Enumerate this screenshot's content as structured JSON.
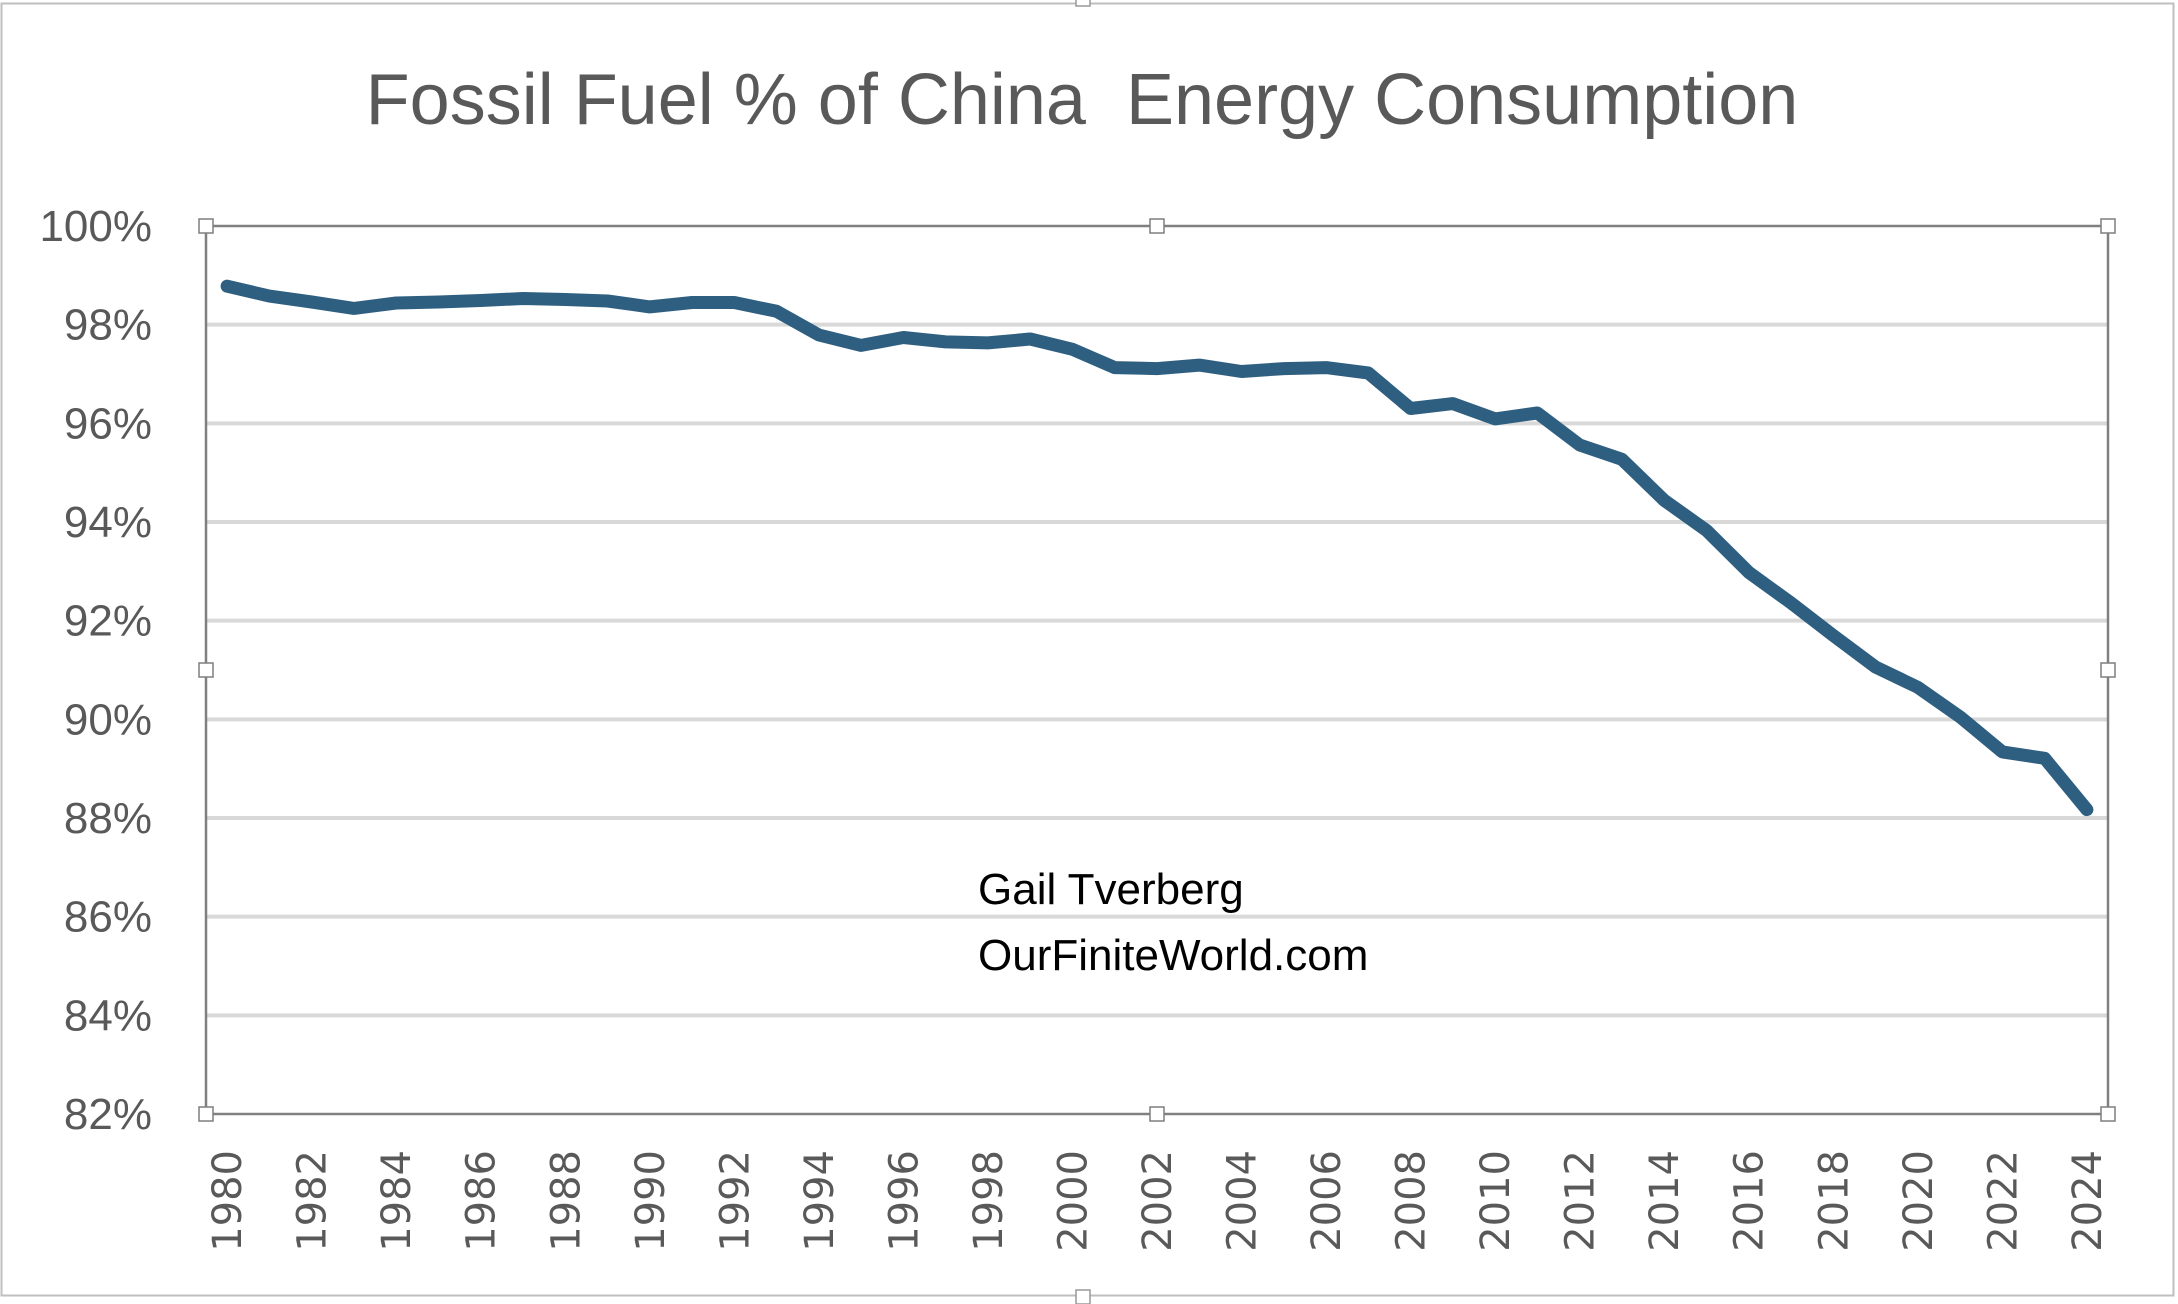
{
  "window": {
    "chart_area_selected": true,
    "plot_area_selected": true
  },
  "colors": {
    "line": "#2F5F80",
    "gridline": "#D9D9D9",
    "text": "#595959",
    "annotation_text": "#000000",
    "frame": "#808080",
    "chart_border": "#BFBFBF"
  },
  "chart_data": {
    "type": "line",
    "title": "Fossil Fuel % of China  Energy Consumption",
    "xlabel": "",
    "ylabel": "",
    "ylim": [
      82,
      100
    ],
    "ytick_step": 2,
    "ytick_labels": [
      "100%",
      "98%",
      "96%",
      "94%",
      "92%",
      "90%",
      "88%",
      "86%",
      "84%",
      "82%"
    ],
    "grid": true,
    "legend": "none",
    "x": [
      1980,
      1981,
      1982,
      1983,
      1984,
      1985,
      1986,
      1987,
      1988,
      1989,
      1990,
      1991,
      1992,
      1993,
      1994,
      1995,
      1996,
      1997,
      1998,
      1999,
      2000,
      2001,
      2002,
      2003,
      2004,
      2005,
      2006,
      2007,
      2008,
      2009,
      2010,
      2011,
      2012,
      2013,
      2014,
      2015,
      2016,
      2017,
      2018,
      2019,
      2020,
      2021,
      2022,
      2023,
      2024
    ],
    "xtick_labels": [
      "1980",
      "1982",
      "1984",
      "1986",
      "1988",
      "1990",
      "1992",
      "1994",
      "1996",
      "1998",
      "2000",
      "2002",
      "2004",
      "2006",
      "2008",
      "2010",
      "2012",
      "2014",
      "2016",
      "2018",
      "2020",
      "2022",
      "2024"
    ],
    "series": [
      {
        "name": "Fossil Fuel % of China Energy Consumption",
        "unit": "%",
        "values": [
          98.78,
          98.58,
          98.46,
          98.33,
          98.44,
          98.46,
          98.49,
          98.53,
          98.51,
          98.48,
          98.36,
          98.45,
          98.45,
          98.27,
          97.79,
          97.58,
          97.74,
          97.65,
          97.63,
          97.71,
          97.5,
          97.13,
          97.11,
          97.18,
          97.05,
          97.11,
          97.13,
          97.02,
          96.3,
          96.4,
          96.09,
          96.21,
          95.56,
          95.27,
          94.44,
          93.83,
          92.98,
          92.36,
          91.7,
          91.06,
          90.65,
          90.05,
          89.34,
          89.21,
          88.17
        ]
      }
    ],
    "annotations": [
      {
        "text": "Gail Tverberg"
      },
      {
        "text": "OurFiniteWorld.com"
      }
    ]
  }
}
